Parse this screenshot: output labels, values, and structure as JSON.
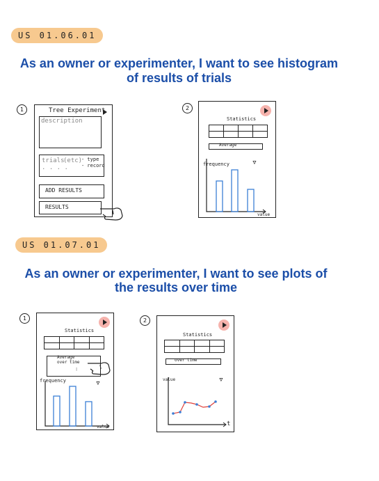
{
  "section1": {
    "tag": "US 01.06.01",
    "title_line1": "As an owner or experimenter, I want to see histogram",
    "title_line2": "of results of trials",
    "screen1": {
      "step": "1",
      "header": "Tree Experiment",
      "description": "description",
      "trials_label": "trials",
      "trials_meta": "(etc)",
      "trials_dots": ". . . .",
      "trials_type": "- type",
      "trials_record": "- record",
      "add_results": "ADD RESULTS",
      "results": "RESULTS"
    },
    "screen2": {
      "step": "2",
      "header": "Statistics",
      "dropdown": "Average",
      "ylabel": "frequency",
      "xlabel": "value"
    }
  },
  "section2": {
    "tag": "US 01.07.01",
    "title_line1": "As an owner or experimenter, I want to see plots of",
    "title_line2": "the results over time",
    "screen1": {
      "step": "1",
      "header": "Statistics",
      "dropdown_option1": "Average",
      "dropdown_option2": "over time",
      "dropdown_more": ":",
      "ylabel": "frequency",
      "xlabel": "value"
    },
    "screen2": {
      "step": "2",
      "header": "Statistics",
      "dropdown": "over time",
      "ylabel": "value",
      "xlabel": "t"
    }
  },
  "colors": {
    "title": "#1b4ea8",
    "tag": "#f7c98f",
    "play": "#f6b3ad",
    "bars": "#3b7fd6",
    "line": "#e0403a",
    "points": "#3b7fd6"
  },
  "icons": [
    "play-icon",
    "filter-icon",
    "pointing-hand-icon"
  ]
}
